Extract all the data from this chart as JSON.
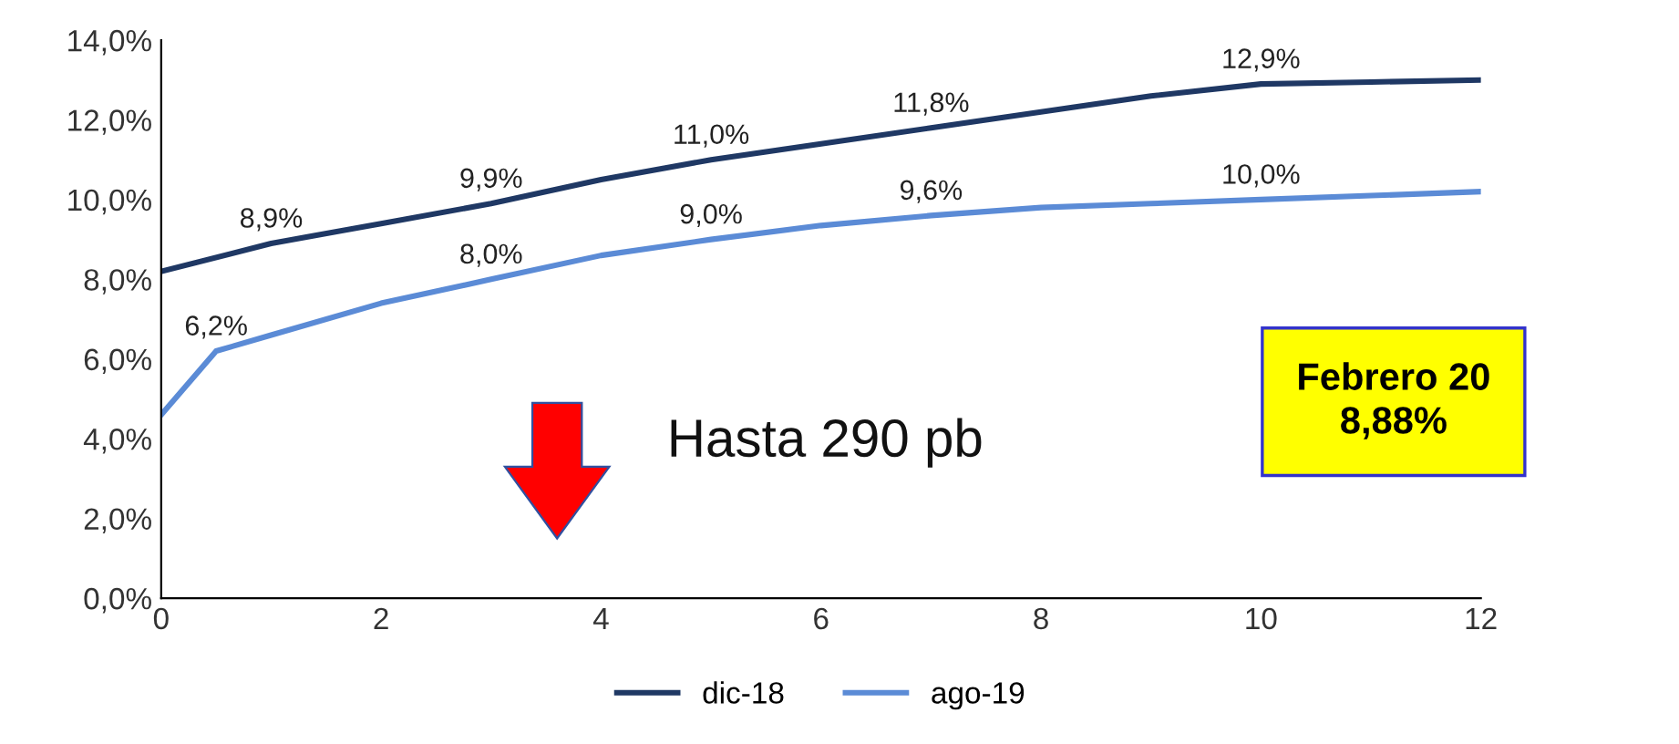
{
  "chart_data": {
    "type": "line",
    "series": [
      {
        "name": "dic-18",
        "color": "#1f3864",
        "x": [
          0,
          1,
          2,
          3,
          4,
          5,
          6,
          7,
          8,
          9,
          10,
          11,
          12
        ],
        "values": [
          8.2,
          8.9,
          9.4,
          9.9,
          10.5,
          11.0,
          11.4,
          11.8,
          12.2,
          12.6,
          12.9,
          12.95,
          13.0
        ],
        "value_labels": [
          null,
          "8,9%",
          null,
          "9,9%",
          null,
          "11,0%",
          null,
          "11,8%",
          null,
          null,
          "12,9%",
          null,
          null
        ]
      },
      {
        "name": "ago-19",
        "color": "#5b8bd6",
        "x": [
          0,
          0.5,
          1,
          2,
          3,
          4,
          5,
          6,
          7,
          8,
          9,
          10,
          11,
          12
        ],
        "values": [
          4.6,
          6.2,
          6.6,
          7.4,
          8.0,
          8.6,
          9.0,
          9.35,
          9.6,
          9.8,
          9.9,
          10.0,
          10.1,
          10.2
        ],
        "value_labels": [
          null,
          "6,2%",
          null,
          null,
          "8,0%",
          null,
          "9,0%",
          null,
          "9,6%",
          null,
          null,
          "10,0%",
          null,
          null
        ]
      }
    ],
    "xlim": [
      0,
      12
    ],
    "xticks": [
      0,
      2,
      4,
      6,
      8,
      10,
      12
    ],
    "ylim": [
      0,
      14
    ],
    "yticks": [
      {
        "value": 0,
        "label": "0,0%"
      },
      {
        "value": 2,
        "label": "2,0%"
      },
      {
        "value": 4,
        "label": "4,0%"
      },
      {
        "value": 6,
        "label": "6,0%"
      },
      {
        "value": 8,
        "label": "8,0%"
      },
      {
        "value": 10,
        "label": "10,0%"
      },
      {
        "value": 12,
        "label": "12,0%"
      },
      {
        "value": 14,
        "label": "14,0%"
      }
    ],
    "annotations": [
      "Hasta 290 pb",
      "Febrero 20\n8,88%"
    ],
    "legend": "bottom",
    "grid": false,
    "marker": "none",
    "line_style": "solid"
  }
}
